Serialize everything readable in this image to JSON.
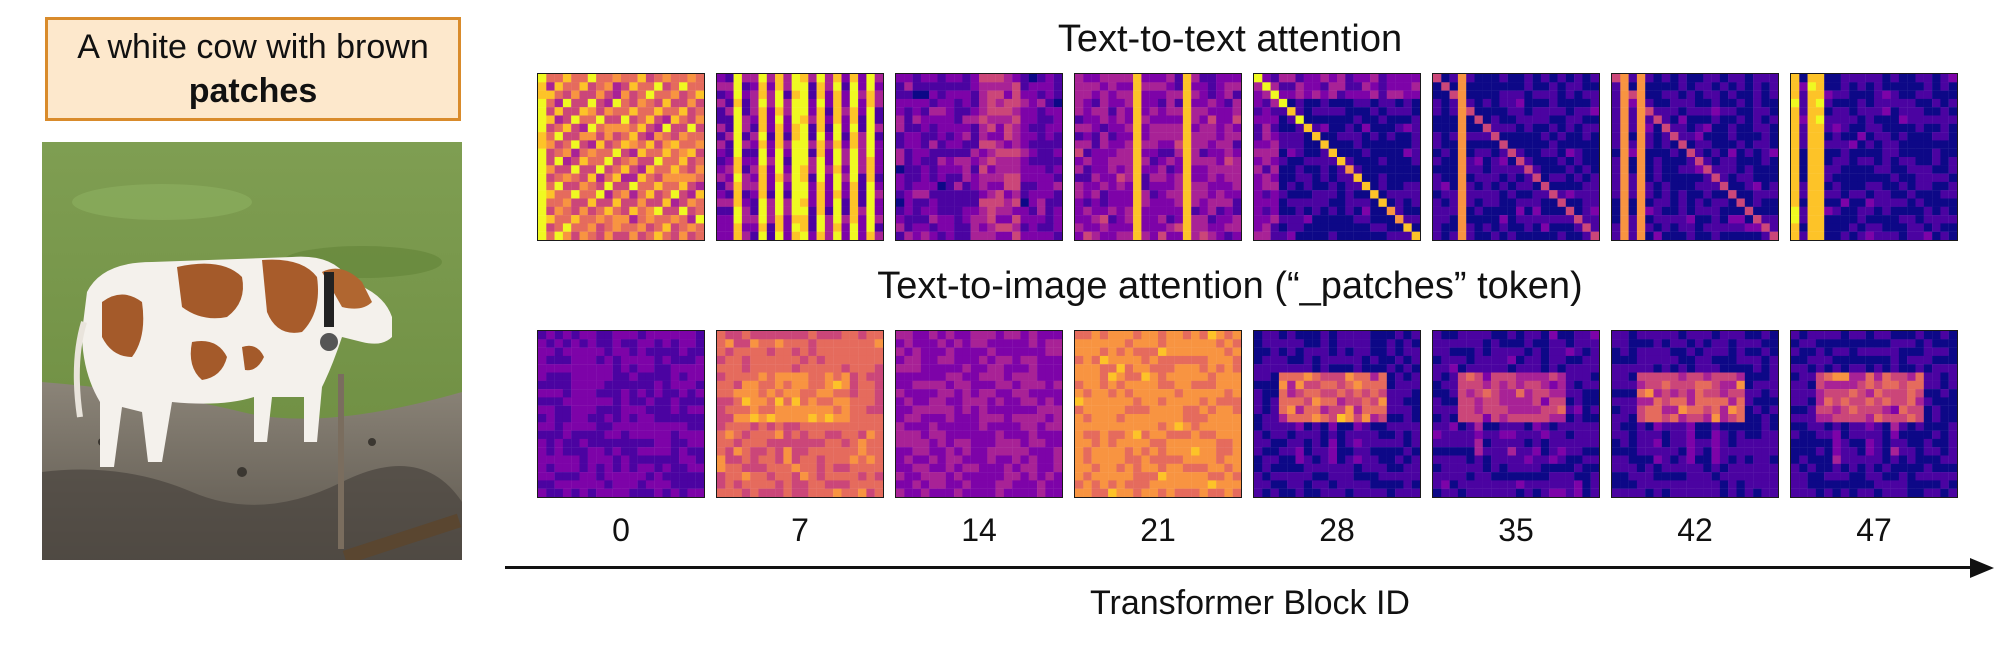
{
  "prompt": {
    "text_line1": "A white cow with brown",
    "text_bold": "patches"
  },
  "photo": {
    "subject": "white cow with brown patches standing on grass and mud"
  },
  "rows": {
    "text_to_text_title": "Text-to-text attention",
    "text_to_image_title": "Text-to-image attention (“_patches” token)"
  },
  "blocks": [
    {
      "id": "0"
    },
    {
      "id": "7"
    },
    {
      "id": "14"
    },
    {
      "id": "21"
    },
    {
      "id": "28"
    },
    {
      "id": "35"
    },
    {
      "id": "42"
    },
    {
      "id": "47"
    }
  ],
  "axis": {
    "title": "Transformer Block ID"
  },
  "colors": {
    "prompt_fill": "#fde8cc",
    "prompt_border": "#d98b2b",
    "colormap": [
      "#0d0887",
      "#4b03a1",
      "#7d03a8",
      "#a82296",
      "#cb4679",
      "#e56b5d",
      "#f89441",
      "#fdc328",
      "#f0f921"
    ]
  }
}
